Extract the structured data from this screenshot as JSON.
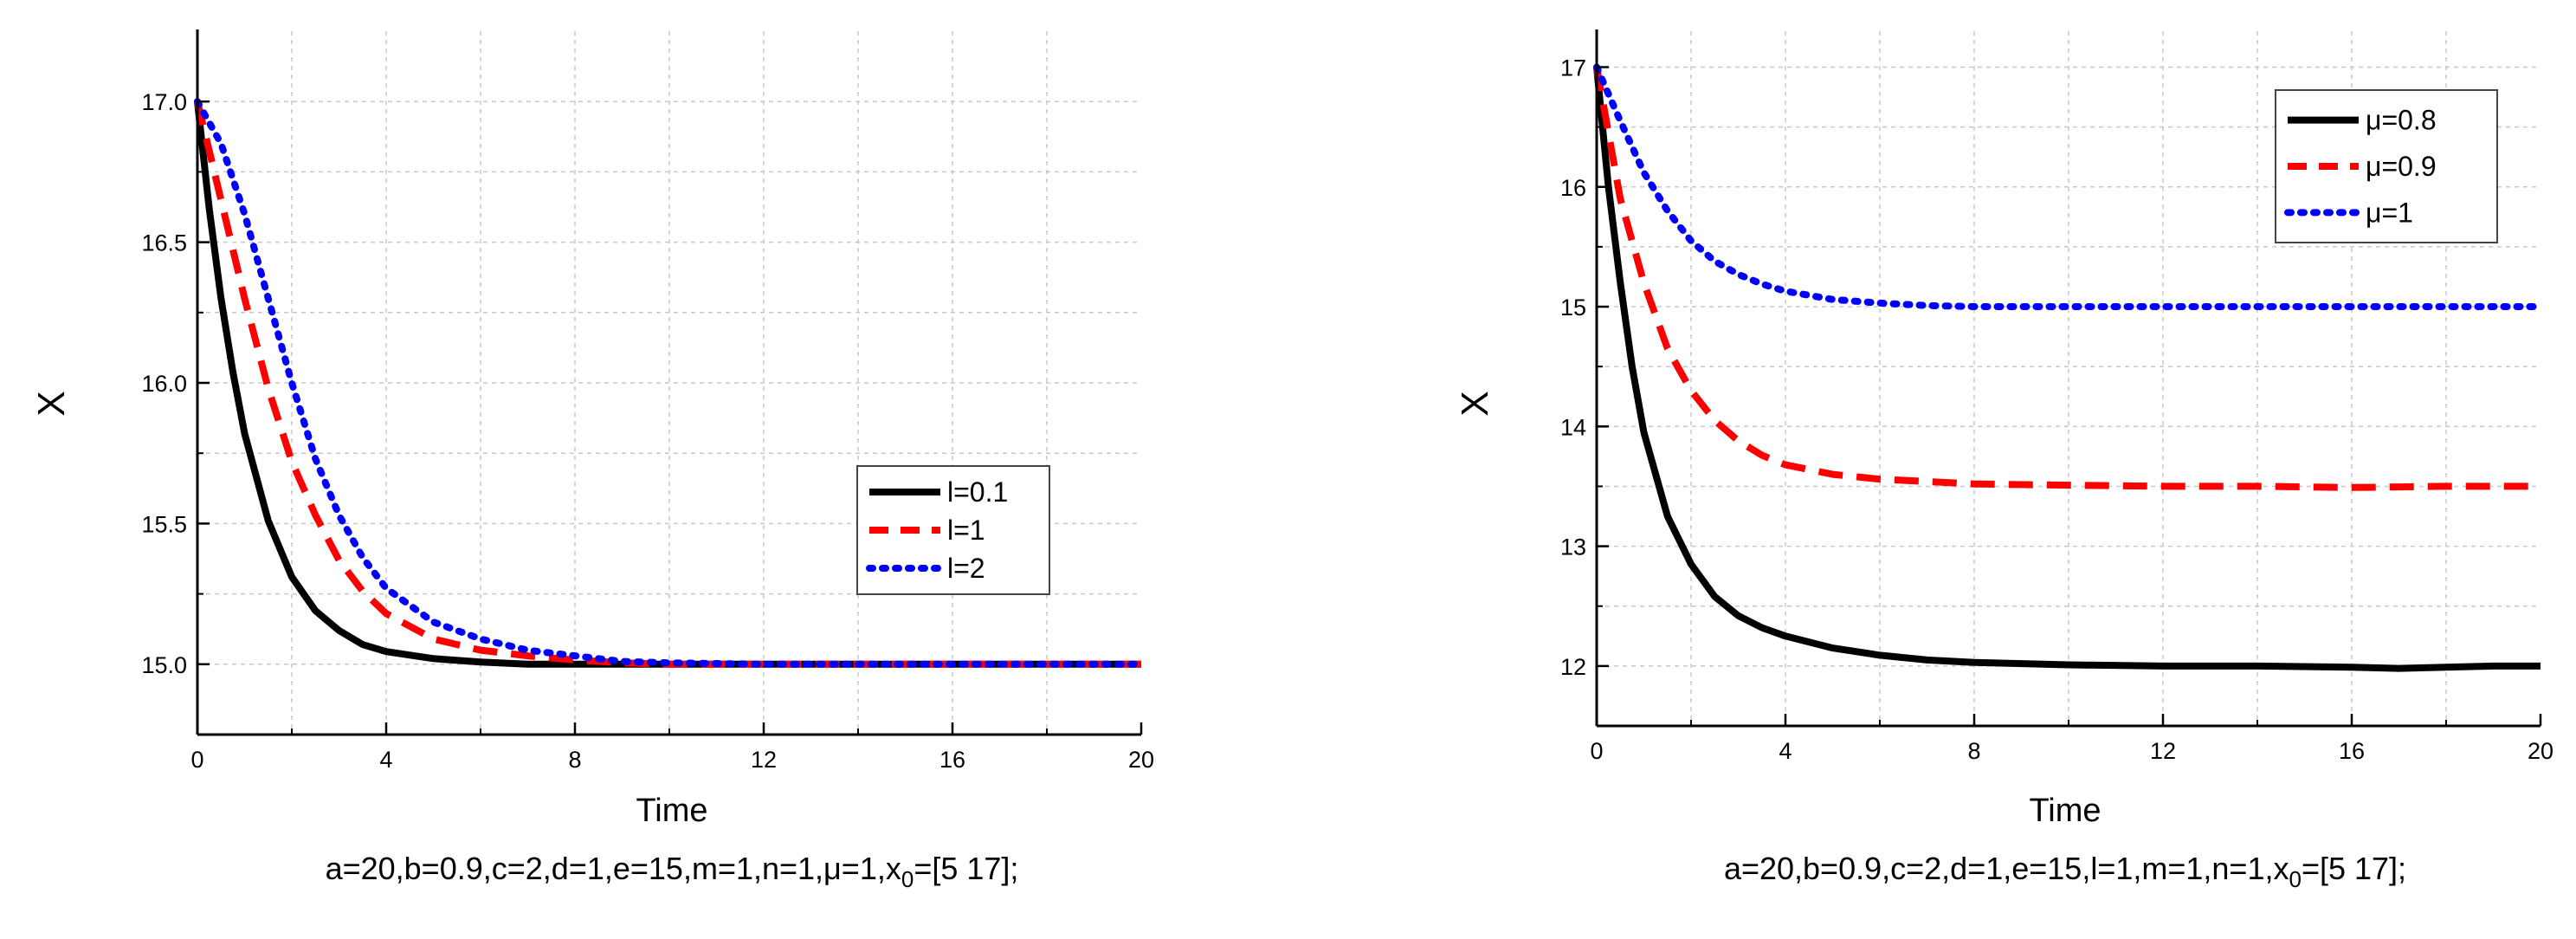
{
  "chart_data": [
    {
      "type": "line",
      "title": "",
      "xlabel": "Time",
      "ylabel": "X",
      "xlim": [
        0,
        20
      ],
      "ylim": [
        14.75,
        17.25
      ],
      "xticks": [
        0,
        4,
        8,
        12,
        16,
        20
      ],
      "xtick_labels": [
        "0",
        "4",
        "8",
        "12",
        "16",
        "20"
      ],
      "yticks": [
        15.0,
        15.5,
        16.0,
        16.5,
        17.0
      ],
      "ytick_labels": [
        "15.0",
        "15.5",
        "16.0",
        "16.5",
        "17.0"
      ],
      "grid": true,
      "legend_position": "middle-right",
      "caption_parts": [
        "a=20,b=0.9,c=2,d=1,e=15,m=1,n=1,μ=1,x",
        "0",
        "=[5 17];"
      ],
      "series": [
        {
          "name": "l=0.1",
          "color": "#000000",
          "style": "solid",
          "x": [
            0,
            0.25,
            0.5,
            0.75,
            1,
            1.5,
            2,
            2.5,
            3,
            3.5,
            4,
            5,
            6,
            7,
            8,
            10,
            12,
            14,
            16,
            18,
            20
          ],
          "y": [
            17.0,
            16.62,
            16.3,
            16.04,
            15.82,
            15.51,
            15.31,
            15.19,
            15.12,
            15.07,
            15.045,
            15.02,
            15.008,
            15.0,
            15.0,
            15.0,
            15.0,
            15.0,
            15.0,
            15.0,
            15.0
          ]
        },
        {
          "name": "l=1",
          "color": "#ff0000",
          "style": "dashed",
          "x": [
            0,
            0.5,
            1,
            1.5,
            2,
            2.5,
            3,
            3.5,
            4,
            5,
            6,
            7,
            8,
            9,
            10,
            12,
            14,
            16,
            18,
            20
          ],
          "y": [
            17.0,
            16.65,
            16.3,
            15.98,
            15.72,
            15.53,
            15.37,
            15.26,
            15.18,
            15.09,
            15.05,
            15.03,
            15.015,
            15.005,
            15.0,
            15.0,
            15.0,
            15.0,
            15.0,
            15.0
          ]
        },
        {
          "name": "l=2",
          "color": "#0000ff",
          "style": "dotted",
          "x": [
            0,
            0.5,
            1,
            1.5,
            2,
            2.5,
            3,
            3.5,
            4,
            5,
            6,
            7,
            8,
            9,
            10,
            12,
            14,
            16,
            18,
            20
          ],
          "y": [
            17.0,
            16.85,
            16.6,
            16.3,
            16.0,
            15.73,
            15.53,
            15.38,
            15.27,
            15.15,
            15.09,
            15.05,
            15.03,
            15.01,
            15.005,
            15.0,
            15.0,
            15.0,
            15.0,
            15.0
          ]
        }
      ]
    },
    {
      "type": "line",
      "title": "",
      "xlabel": "Time",
      "ylabel": "X",
      "xlim": [
        0,
        20
      ],
      "ylim": [
        11.5,
        17.3
      ],
      "xticks": [
        0,
        4,
        8,
        12,
        16,
        20
      ],
      "xtick_labels": [
        "0",
        "4",
        "8",
        "12",
        "16",
        "20"
      ],
      "yticks": [
        12,
        13,
        14,
        15,
        16,
        17
      ],
      "ytick_labels": [
        "12",
        "13",
        "14",
        "15",
        "16",
        "17"
      ],
      "grid": true,
      "legend_position": "top-right",
      "caption_parts": [
        "a=20,b=0.9,c=2,d=1,e=15,l=1,m=1,n=1,x",
        "0",
        "=[5 17];"
      ],
      "series": [
        {
          "name": "μ=0.8",
          "color": "#000000",
          "style": "solid",
          "x": [
            0,
            0.25,
            0.5,
            0.75,
            1,
            1.5,
            2,
            2.5,
            3,
            3.5,
            4,
            5,
            6,
            7,
            8,
            10,
            12,
            14,
            16,
            17,
            18,
            19,
            20
          ],
          "y": [
            17.0,
            16.0,
            15.2,
            14.5,
            13.95,
            13.25,
            12.85,
            12.58,
            12.42,
            12.32,
            12.25,
            12.15,
            12.09,
            12.05,
            12.03,
            12.01,
            12.0,
            12.0,
            11.99,
            11.98,
            11.99,
            12.0,
            12.0
          ]
        },
        {
          "name": "μ=0.9",
          "color": "#ff0000",
          "style": "dashed",
          "x": [
            0,
            0.5,
            1,
            1.5,
            2,
            2.5,
            3,
            3.5,
            4,
            5,
            6,
            7,
            8,
            10,
            12,
            14,
            16,
            18,
            20
          ],
          "y": [
            17.0,
            15.9,
            15.2,
            14.65,
            14.3,
            14.05,
            13.88,
            13.76,
            13.68,
            13.6,
            13.56,
            13.54,
            13.52,
            13.51,
            13.5,
            13.5,
            13.49,
            13.5,
            13.5
          ]
        },
        {
          "name": "μ=1",
          "color": "#0000ff",
          "style": "dotted",
          "x": [
            0,
            0.5,
            1,
            1.5,
            2,
            2.5,
            3,
            3.5,
            4,
            5,
            6,
            7,
            8,
            10,
            12,
            14,
            16,
            18,
            20
          ],
          "y": [
            17.0,
            16.55,
            16.12,
            15.8,
            15.55,
            15.38,
            15.27,
            15.19,
            15.13,
            15.06,
            15.03,
            15.01,
            15.0,
            15.0,
            15.0,
            15.0,
            15.0,
            15.0,
            15.0
          ]
        }
      ]
    }
  ]
}
